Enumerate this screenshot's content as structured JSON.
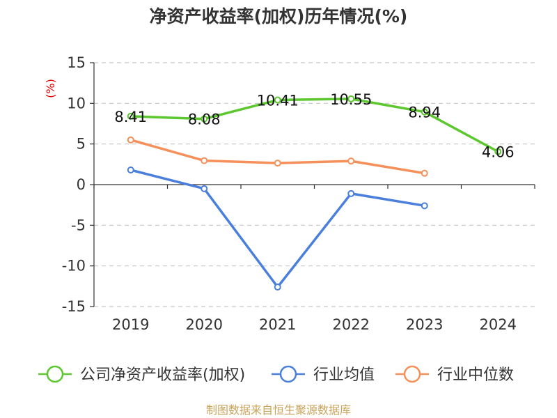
{
  "chart_data": {
    "type": "line",
    "title": "净资产收益率(加权)历年情况(%)",
    "ylabel": "(%)",
    "xlabel": "",
    "categories": [
      "2019",
      "2020",
      "2021",
      "2022",
      "2023",
      "2024"
    ],
    "ylim": [
      -15,
      15
    ],
    "yticks": [
      15,
      10,
      5,
      0,
      -5,
      -10,
      -15
    ],
    "grid": true,
    "legend_position": "bottom",
    "series": [
      {
        "name": "公司净资产收益率(加权)",
        "color": "#5cc72f",
        "values": [
          8.41,
          8.08,
          10.41,
          10.55,
          8.94,
          4.06
        ],
        "labels": [
          "8.41",
          "8.08",
          "10.41",
          "10.55",
          "8.94",
          "4.06"
        ]
      },
      {
        "name": "行业均值",
        "color": "#4a7fdc",
        "values": [
          1.8,
          -0.5,
          -12.6,
          -1.1,
          -2.6,
          null
        ]
      },
      {
        "name": "行业中位数",
        "color": "#f5905a",
        "values": [
          5.5,
          2.95,
          2.65,
          2.9,
          1.4,
          null
        ]
      }
    ],
    "source": "制图数据来自恒生聚源数据库"
  }
}
